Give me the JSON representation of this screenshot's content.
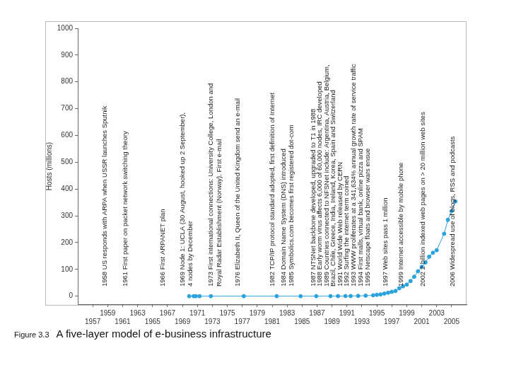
{
  "chart_data": {
    "type": "line",
    "y_label": "Hosts (millions)",
    "x": [
      1969.9,
      1970.5,
      1970.8,
      1971.3,
      1972.8,
      1977.2,
      1981.6,
      1984.8,
      1986.9,
      1988.8,
      1989.8,
      1990.8,
      1991.5,
      1992.5,
      1993.5,
      1994.5,
      1995.0,
      1995.5,
      1996.0,
      1996.5,
      1997.0,
      1997.5,
      1998.0,
      1998.5,
      1999.0,
      1999.5,
      2000.0,
      2000.5,
      2001.0,
      2001.5,
      2002.0,
      2002.5,
      2003.0,
      2004.0,
      2004.5,
      2005.0,
      2005.5
    ],
    "values": [
      0,
      0,
      0,
      0,
      0,
      0,
      0,
      0,
      0,
      0.1,
      0.2,
      0.3,
      0.5,
      1,
      1.8,
      3.2,
      4.9,
      6.6,
      9.5,
      12.9,
      16.1,
      19.5,
      29.7,
      36.7,
      43.2,
      56.2,
      72.4,
      93,
      109.6,
      125.9,
      147.3,
      162.1,
      171.6,
      233.1,
      285.1,
      317.6,
      353.3
    ],
    "color": "#2aa2dc",
    "marker": "circle",
    "line_style": "solid",
    "xlim": [
      1955,
      2007
    ],
    "xticks": [
      1957,
      1959,
      1961,
      1963,
      1965,
      1967,
      1969,
      1971,
      1973,
      1975,
      1977,
      1979,
      1981,
      1983,
      1985,
      1987,
      1989,
      1991,
      1993,
      1995,
      1997,
      1999,
      2001,
      2003,
      2005
    ],
    "ylim": [
      -30,
      1000
    ],
    "yticks": [
      0,
      100,
      200,
      300,
      400,
      500,
      600,
      700,
      800,
      900,
      1000
    ],
    "grid": false,
    "annotations": [
      "1958 US responds with ARPA when USSR launches Sputnik",
      "1961 First paper on packet network switching theory",
      "1966 First ARPANET plan",
      "1969 Node 1: UCLA (30 August, hooked up 2 September),",
      "4 nodes by December",
      "1973 First international connections: University College, London and",
      "Royal Radar Establishment (Norway). First e-mail",
      "1976 Elizabeth II, Queen of the United Kingdom send an e-mail",
      "1982 TCP/IP protocol standard adopted, first definition of Internet",
      "1984 Domain Name System (DNS) introduced",
      "1985 Symbolics.com becomes first registered dot-com",
      "1987 NTSNet backbone developed, upgraded to T1 in 1988",
      "1988 Early worm virus affects 6,000 of 60,000 nodes, IRC developed",
      "1989 Countries connected to NFSNet include: Argentina, Austria, Belgium,",
      "Brazil, Chile, Greece, India, Ireland, Korea, Spain and Switzerland",
      "1991 World Wide Web released by CERN",
      "1992 Surfing the internet term coined",
      "1993 WWW proliferates at a 341,634% annual growth rate of service traffic",
      "1994 First malls, virtual bank, online pizza and SPAM",
      "1995 Netscape floats and browser wars ensue",
      "1997 Web sites pass 1 million",
      "1999 Internet accessible by mobile phone",
      "2002 2 billion indexed web pages on > 20 million web sites",
      "2006 Widespread use of blogs, RSS and podcasts"
    ]
  },
  "caption": {
    "label": "Figure 3.3",
    "title": "A five-layer model of e-business infrastructure"
  }
}
